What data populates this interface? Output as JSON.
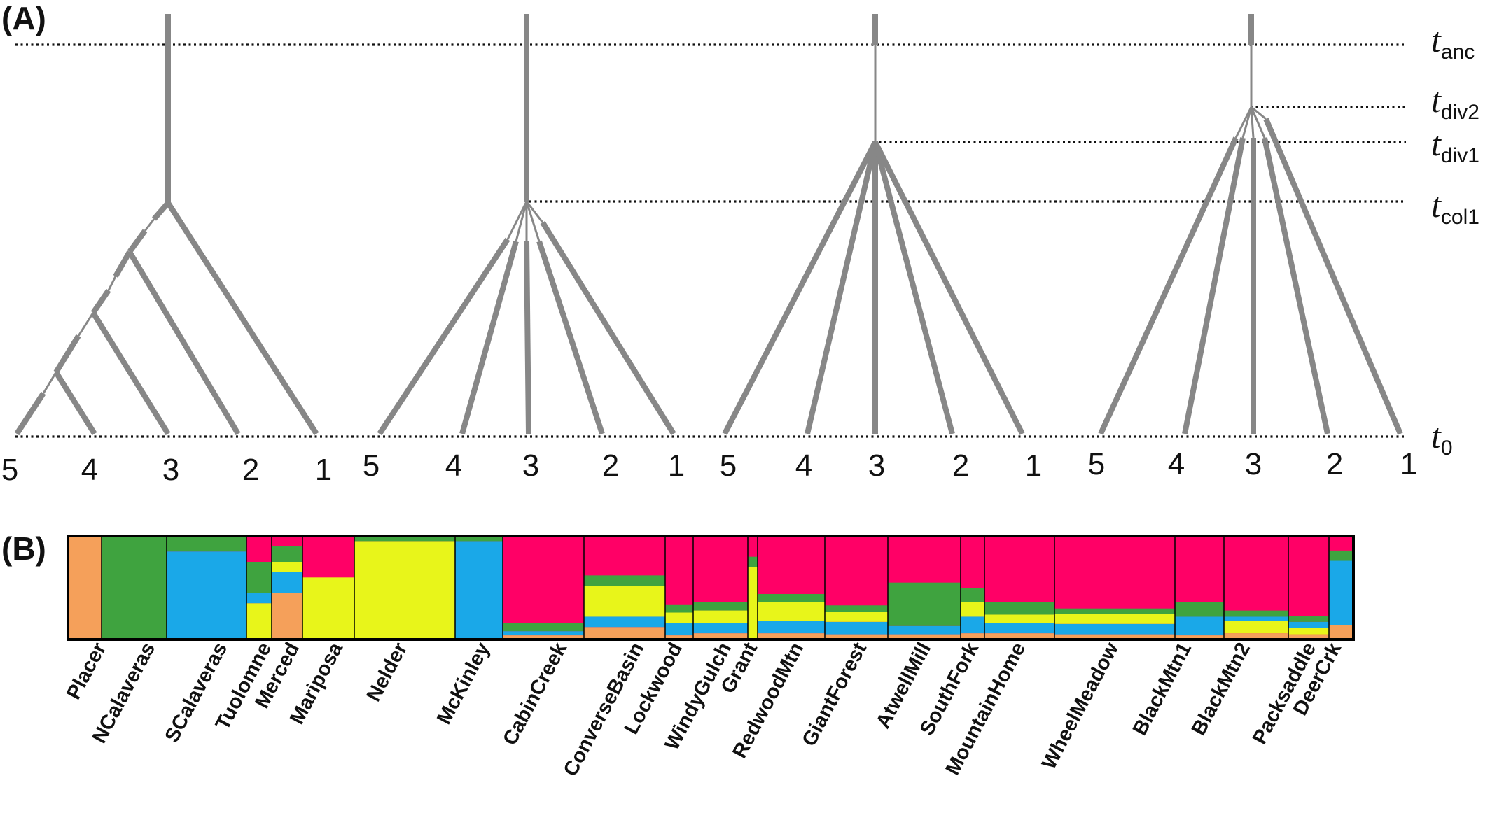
{
  "panels": {
    "a": "(A)",
    "b": "(B)"
  },
  "time_labels": [
    {
      "main": "t",
      "sub": "anc"
    },
    {
      "main": "t",
      "sub": "div2"
    },
    {
      "main": "t",
      "sub": "div1"
    },
    {
      "main": "t",
      "sub": "col1"
    },
    {
      "main": "t",
      "sub": "0"
    }
  ],
  "trees": [
    {
      "tips": [
        "5",
        "4",
        "3",
        "2",
        "1"
      ]
    },
    {
      "tips": [
        "5",
        "4",
        "3",
        "2",
        "1"
      ]
    },
    {
      "tips": [
        "5",
        "4",
        "3",
        "2",
        "1"
      ]
    },
    {
      "tips": [
        "5",
        "4",
        "3",
        "2",
        "1"
      ]
    }
  ],
  "colors": {
    "branch": "#878787",
    "cluster_1": "#ff0066",
    "cluster_2": "#3fa33f",
    "cluster_3": "#1aa8e8",
    "cluster_4": "#e8f51a",
    "cluster_5": "#f5a05a"
  },
  "populations": [
    "Placer",
    "NCalaveras",
    "SCalaveras",
    "Tuolomne",
    "Merced",
    "Mariposa",
    "Nelder",
    "McKinley",
    "CabinCreek",
    "ConverseBasin",
    "Lockwood",
    "WindyGulch",
    "Grant",
    "RedwoodMtn",
    "GiantForest",
    "AtwellMill",
    "SouthFork",
    "MountainHome",
    "WheelMeadow",
    "BlackMtn1",
    "BlackMtn2",
    "Packsaddle",
    "DeerCrk"
  ]
}
